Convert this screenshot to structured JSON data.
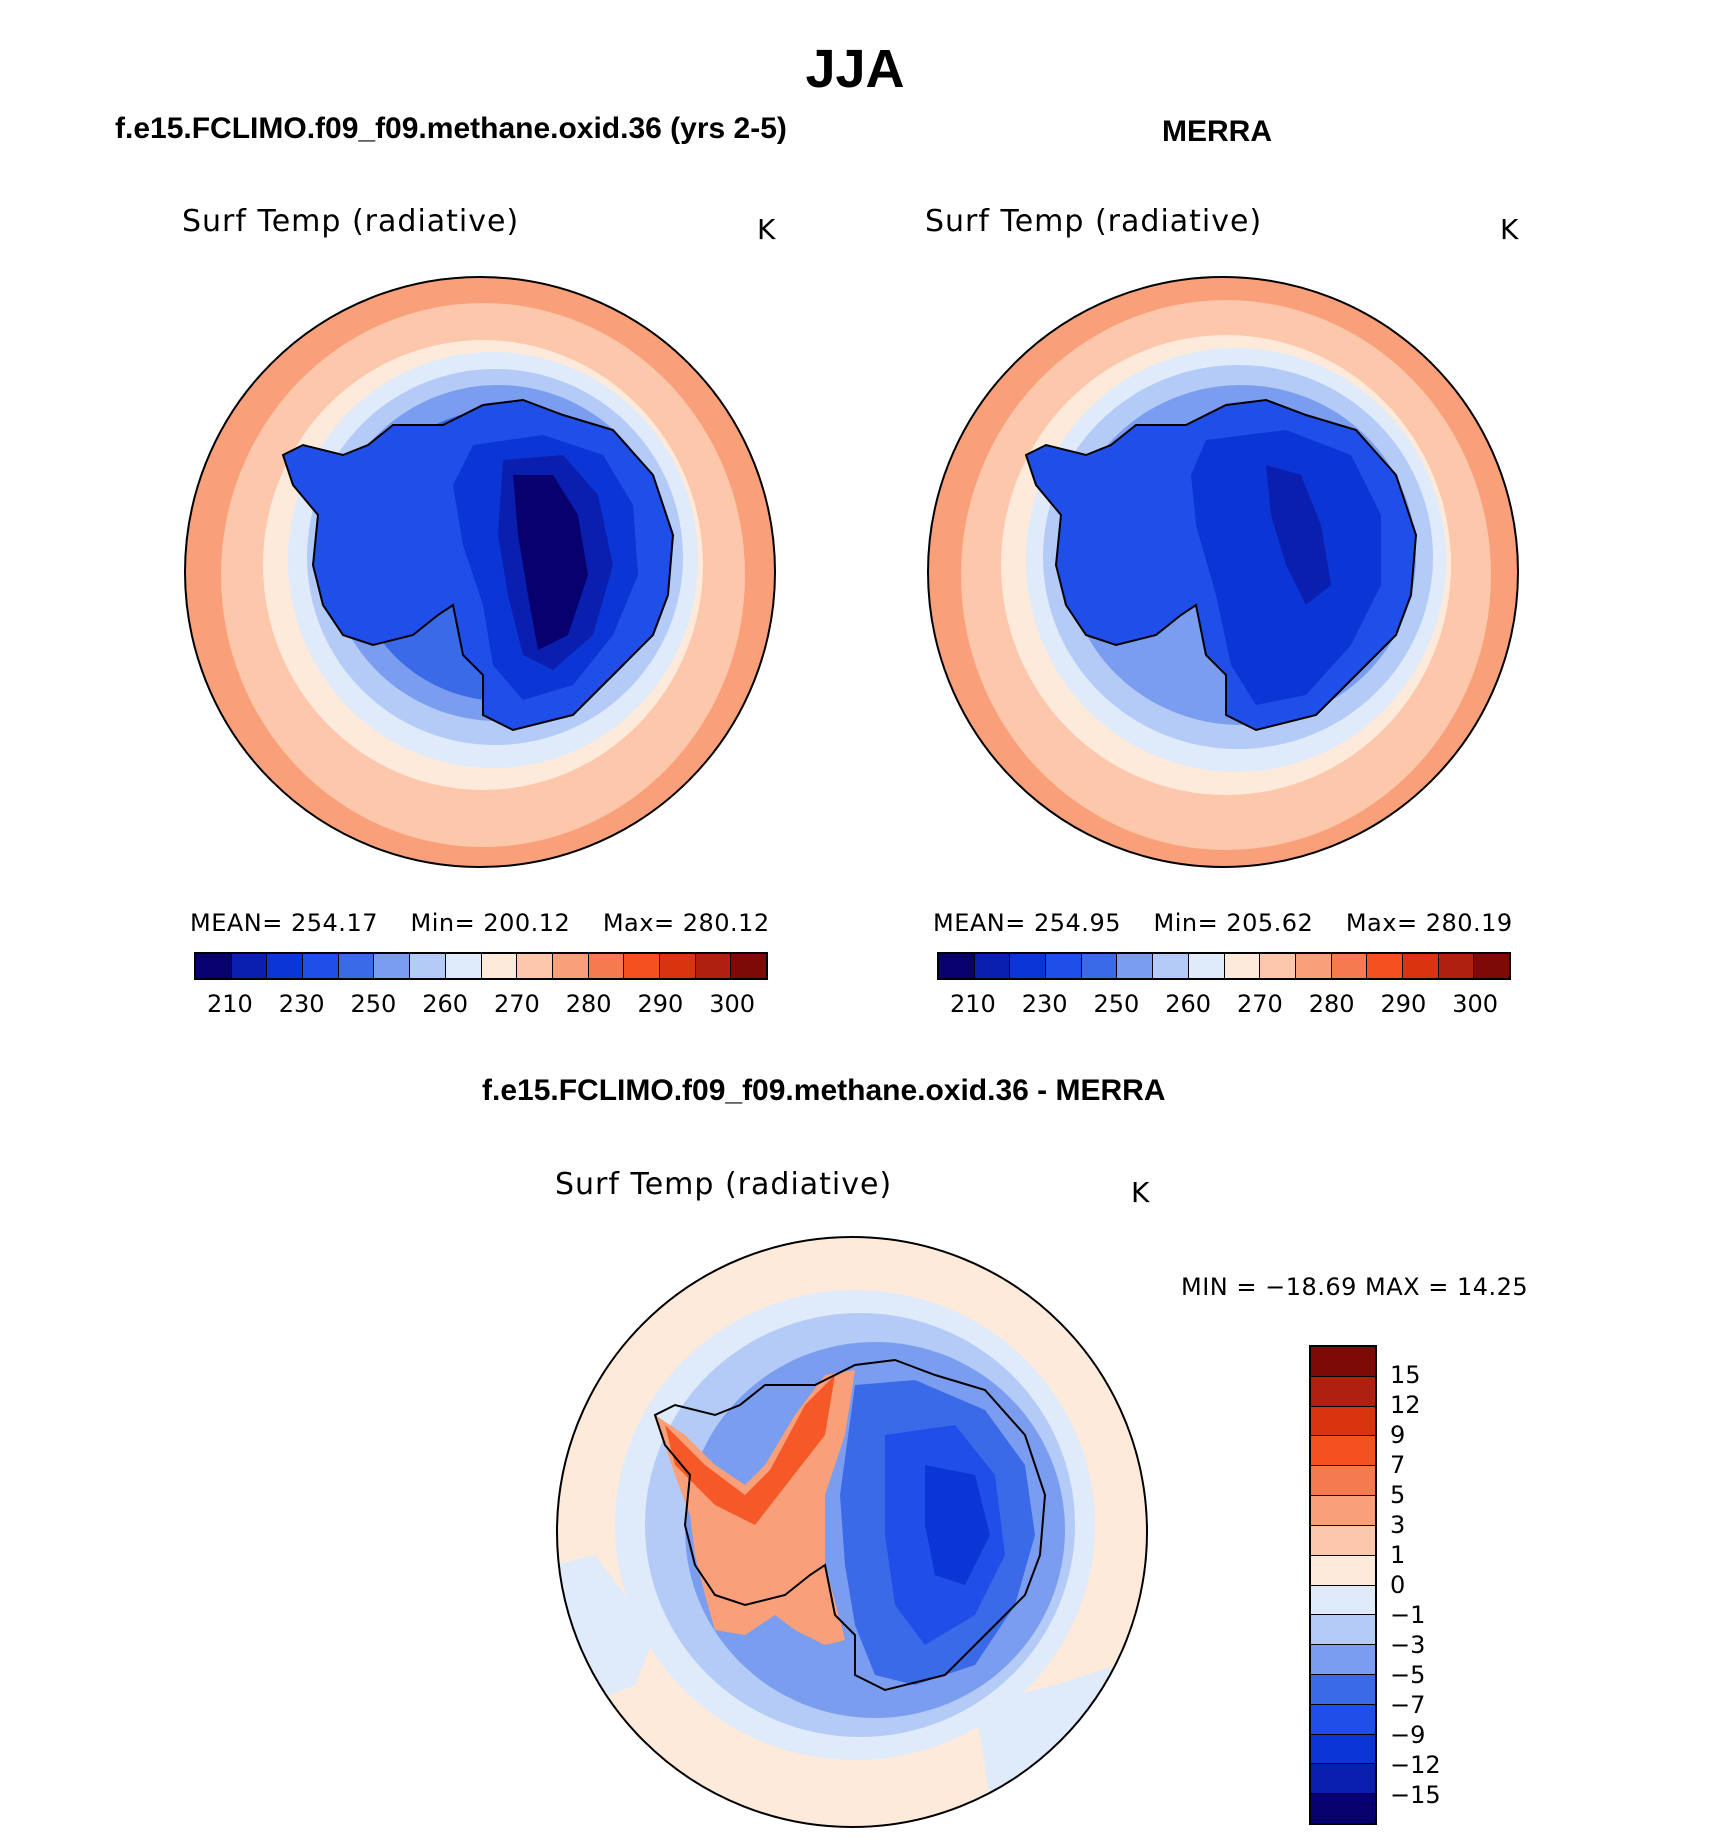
{
  "title": "JJA",
  "panels": [
    {
      "title": "f.e15.FCLIMO.f09_f09.methane.oxid.36 (yrs 2-5)",
      "variable": "Surf Temp (radiative)",
      "units": "K",
      "mean_label": "MEAN=",
      "mean": "254.17",
      "min_label": "Min=",
      "min": "200.12",
      "max_label": "Max=",
      "max": "280.12"
    },
    {
      "title": "MERRA",
      "variable": "Surf Temp (radiative)",
      "units": "K",
      "mean_label": "MEAN=",
      "mean": "254.95",
      "min_label": "Min=",
      "min": "205.62",
      "max_label": "Max=",
      "max": "280.19"
    },
    {
      "title": "f.e15.FCLIMO.f09_f09.methane.oxid.36 - MERRA",
      "variable": "Surf Temp (radiative)",
      "units": "K",
      "minmax": "MIN = −18.69 MAX =   14.25"
    }
  ],
  "colorbar_abs": {
    "colors": [
      "#08006e",
      "#0a1fb0",
      "#0b35d4",
      "#1f4fe8",
      "#3a6ae8",
      "#7a9df0",
      "#b3cbf6",
      "#dfeafa",
      "#fdeadb",
      "#fcc7aa",
      "#f9a07a",
      "#f67a4f",
      "#f4511e",
      "#d93310",
      "#b02010",
      "#7d0a06"
    ],
    "ticks": [
      "210",
      "230",
      "250",
      "260",
      "270",
      "280",
      "290",
      "300"
    ]
  },
  "colorbar_diff": {
    "colors": [
      "#7d0a06",
      "#b02010",
      "#d93310",
      "#f4511e",
      "#f67a4f",
      "#f9a07a",
      "#fcc7aa",
      "#fdeadb",
      "#dfeafa",
      "#b3cbf6",
      "#7a9df0",
      "#3a6ae8",
      "#1f4fe8",
      "#0b35d4",
      "#0a1fb0",
      "#08006e"
    ],
    "ticks": [
      "15",
      "12",
      "9",
      "7",
      "5",
      "3",
      "1",
      "0",
      "−1",
      "−3",
      "−5",
      "−7",
      "−9",
      "−12",
      "−15"
    ]
  }
}
